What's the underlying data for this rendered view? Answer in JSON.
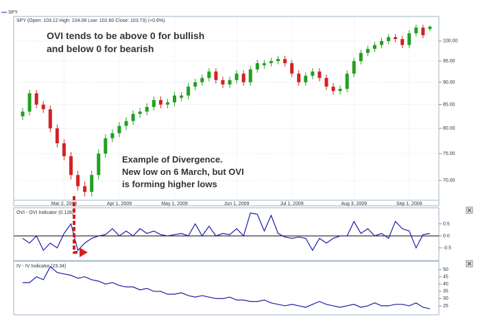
{
  "chart_data": [
    {
      "type": "candlestick",
      "name": "SPY",
      "title": "SPY (Open: 103.12 High: 104.08 Low: 102.60 Close: 103.73) (+0.6%)",
      "open": [
        82.5,
        83.5,
        87.5,
        85,
        84,
        80,
        77,
        74.5,
        71,
        69,
        68,
        71,
        75,
        78,
        79,
        80.5,
        81.5,
        83,
        83.5,
        84.5,
        86,
        85,
        85.5,
        86.5,
        87,
        89,
        90,
        91,
        92.5,
        90.5,
        89.5,
        90.5,
        92,
        90,
        93,
        94,
        94.5,
        95,
        95.5,
        94.5,
        92,
        90,
        91.5,
        92.5,
        91,
        89,
        88,
        88.5,
        92,
        95,
        97,
        98,
        99,
        100,
        101,
        100.5,
        99,
        102,
        103.5,
        103.12
      ],
      "high": [
        84.3,
        88.3,
        88.3,
        85.8,
        84.8,
        80.8,
        77.8,
        75.3,
        71.8,
        69.8,
        71.8,
        75.8,
        78.8,
        79.8,
        81.3,
        82.3,
        83.8,
        84.3,
        85.3,
        86.8,
        86.8,
        86.3,
        87.8,
        87.8,
        89.8,
        90.8,
        91.8,
        93.3,
        93.3,
        91.3,
        91.3,
        92.8,
        92.8,
        93.8,
        95.3,
        95.3,
        95.8,
        96.3,
        96.3,
        95.3,
        92.8,
        92.3,
        93.3,
        93.3,
        91.8,
        89.8,
        89.3,
        92.8,
        95.8,
        97.8,
        98.8,
        99.8,
        100.8,
        101.8,
        101.8,
        101.3,
        102.8,
        104.3,
        104.3,
        104.08
      ],
      "low": [
        81.7,
        82.7,
        84.2,
        83.2,
        79.2,
        76.2,
        73.7,
        70.2,
        68.2,
        67.2,
        67.2,
        70.2,
        74.2,
        77.2,
        78.2,
        79.7,
        80.7,
        82.2,
        82.7,
        83.7,
        84.2,
        84.2,
        84.7,
        85.7,
        86.2,
        88.2,
        89.2,
        90.2,
        89.7,
        88.7,
        88.7,
        89.7,
        89.2,
        89.2,
        92.2,
        93.2,
        93.7,
        94.2,
        93.7,
        91.2,
        89.2,
        89.2,
        90.7,
        90.2,
        88.2,
        87.2,
        87.2,
        87.7,
        91.2,
        94.2,
        96.2,
        97.2,
        98.2,
        99.2,
        99.7,
        98.2,
        98.2,
        101.2,
        100.7,
        102.6
      ],
      "close": [
        83.5,
        87.5,
        85,
        84,
        80,
        77,
        74.5,
        71,
        69,
        68,
        71,
        75,
        78,
        79,
        80.5,
        81.5,
        83,
        83.5,
        84.5,
        86,
        85,
        85.5,
        87,
        87,
        89,
        90,
        91,
        92.5,
        90.5,
        89.5,
        90.5,
        92,
        90,
        93,
        94.5,
        94.5,
        95,
        95.5,
        94.5,
        92,
        90,
        91.5,
        92.5,
        91,
        89,
        88,
        88.5,
        92,
        95,
        97,
        98,
        99,
        100,
        101,
        100.5,
        99,
        102,
        103.5,
        101.5,
        103.73
      ],
      "up_color": "#22a022",
      "down_color": "#d42222",
      "log_scale": true,
      "grid": true,
      "ylim": [
        66.8,
        106.3
      ],
      "yticks": [
        {
          "value": 100,
          "label": "100.00"
        },
        {
          "value": 95,
          "label": "95.00"
        },
        {
          "value": 90,
          "label": "90.00"
        },
        {
          "value": 85,
          "label": "85.00"
        },
        {
          "value": 80,
          "label": "80.00"
        },
        {
          "value": 75,
          "label": "75.00"
        },
        {
          "value": 70,
          "label": "70.00"
        }
      ],
      "xticks": [
        {
          "value": 6,
          "label": "Mar 2, 2009"
        },
        {
          "value": 14,
          "label": "Apr 1, 2009"
        },
        {
          "value": 22,
          "label": "May 1, 2009"
        },
        {
          "value": 31,
          "label": "Jun 1, 2009"
        },
        {
          "value": 39,
          "label": "Jul 1, 2009"
        },
        {
          "value": 48,
          "label": "Aug 3, 2009"
        },
        {
          "value": 56,
          "label": "Sep 1, 2009"
        }
      ],
      "annotations": [
        {
          "lines": [
            "OVI tends to be above 0 for bullish",
            "and below 0 for bearish"
          ],
          "color": "#1c2cb4"
        },
        {
          "lines": [
            "Example of Divergence.",
            "New low on 6 March, but OVI",
            "is forming higher lows"
          ],
          "color": "#d42020"
        }
      ]
    },
    {
      "type": "line",
      "title": "OVI - OVI Indicator (0.128)",
      "color": "#1a1aa6",
      "values": [
        -0.1,
        -0.3,
        0,
        -0.6,
        -0.3,
        -0.5,
        0.1,
        0.5,
        -0.6,
        -0.3,
        -0.1,
        0,
        0.05,
        0.3,
        0,
        0.2,
        0,
        0.3,
        0.1,
        0.2,
        0.05,
        0,
        0.05,
        0.1,
        0,
        0.5,
        0,
        0.4,
        0,
        0.1,
        0.05,
        0.3,
        0,
        0.95,
        0.9,
        0.2,
        0.85,
        0.1,
        -0.05,
        -0.1,
        -0.05,
        -0.1,
        -0.6,
        -0.1,
        -0.3,
        -0.1,
        0,
        0,
        0.6,
        0.1,
        0.3,
        0,
        0.1,
        -0.1,
        0.6,
        0.3,
        0.2,
        -0.5,
        0.05,
        0.1
      ],
      "ylim": [
        -0.97,
        1.11
      ],
      "yticks": [
        0.5,
        {
          "value": 0,
          "label": "0.0"
        },
        -0.5
      ],
      "reference_line": 0
    },
    {
      "type": "line",
      "title": "IV - IV Indicator (23.34)",
      "color": "#1a1aa6",
      "values": [
        41,
        41,
        45,
        43,
        52,
        48,
        47,
        46,
        44,
        45,
        43,
        42,
        40,
        41,
        39,
        38,
        38,
        36,
        37,
        35,
        35,
        33,
        33,
        34,
        32,
        31,
        32,
        31,
        30,
        30,
        31,
        29,
        29,
        28,
        28,
        29,
        27,
        26,
        25,
        26,
        25,
        24,
        26,
        28,
        26,
        25,
        24,
        25,
        26,
        24,
        25,
        27,
        25,
        25,
        26,
        26,
        25,
        27,
        24,
        23
      ],
      "ylim": [
        19.3,
        53.8
      ],
      "yticks": [
        50,
        45,
        40,
        35,
        30,
        25
      ]
    }
  ]
}
